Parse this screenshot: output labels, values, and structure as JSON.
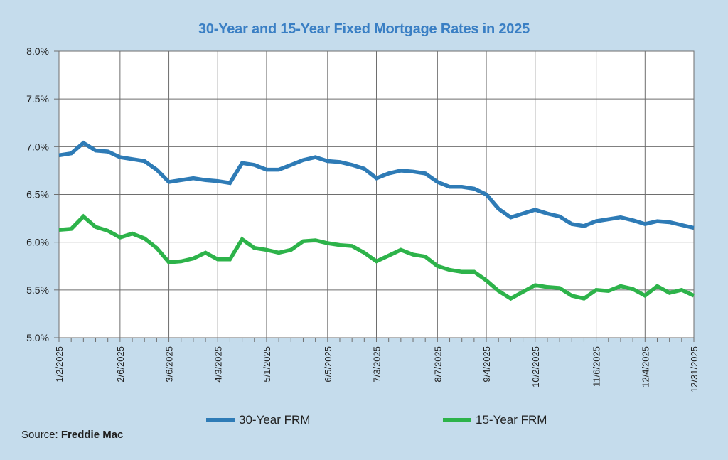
{
  "chart_data": {
    "type": "line",
    "title": "30-Year and 15-Year Fixed Mortgage Rates in 2025",
    "xlabel": "",
    "ylabel": "",
    "ylim": [
      5.0,
      8.0
    ],
    "yticks": [
      5.0,
      5.5,
      6.0,
      6.5,
      7.0,
      7.5,
      8.0
    ],
    "ytick_labels": [
      "5.0%",
      "5.5%",
      "6.0%",
      "6.5%",
      "7.0%",
      "7.5%",
      "8.0%"
    ],
    "xtick_labels": [
      "1/2/2025",
      "2/6/2025",
      "3/6/2025",
      "4/3/2025",
      "5/1/2025",
      "6/5/2025",
      "7/3/2025",
      "8/7/2025",
      "9/4/2025",
      "10/2/2025",
      "11/6/2025",
      "12/4/2025",
      "12/31/2025"
    ],
    "xtick_weeks": [
      0,
      5,
      9,
      13,
      17,
      22,
      26,
      31,
      35,
      39,
      44,
      48,
      52
    ],
    "grid": true,
    "legend_position": "bottom",
    "series": [
      {
        "name": "30-Year FRM",
        "color": "#2e7bb6",
        "values": [
          6.91,
          6.93,
          7.04,
          6.96,
          6.95,
          6.89,
          6.87,
          6.85,
          6.76,
          6.63,
          6.65,
          6.67,
          6.65,
          6.64,
          6.62,
          6.83,
          6.81,
          6.76,
          6.76,
          6.81,
          6.86,
          6.89,
          6.85,
          6.84,
          6.81,
          6.77,
          6.67,
          6.72,
          6.75,
          6.74,
          6.72,
          6.63,
          6.58,
          6.58,
          6.56,
          6.5,
          6.35,
          6.26,
          6.3,
          6.34,
          6.3,
          6.27,
          6.19,
          6.17,
          6.22,
          6.24,
          6.26,
          6.23,
          6.19,
          6.22,
          6.21,
          6.18,
          6.15
        ]
      },
      {
        "name": "15-Year FRM",
        "color": "#2db34a",
        "values": [
          6.13,
          6.14,
          6.27,
          6.16,
          6.12,
          6.05,
          6.09,
          6.04,
          5.94,
          5.79,
          5.8,
          5.83,
          5.89,
          5.82,
          5.82,
          6.03,
          5.94,
          5.92,
          5.89,
          5.92,
          6.01,
          6.02,
          5.99,
          5.97,
          5.96,
          5.89,
          5.8,
          5.86,
          5.92,
          5.87,
          5.85,
          5.75,
          5.71,
          5.69,
          5.69,
          5.6,
          5.49,
          5.41,
          5.48,
          5.55,
          5.53,
          5.52,
          5.44,
          5.41,
          5.5,
          5.49,
          5.54,
          5.51,
          5.44,
          5.54,
          5.47,
          5.5,
          5.44
        ]
      }
    ]
  },
  "source": {
    "label": "Source:",
    "name": "Freddie Mac"
  }
}
